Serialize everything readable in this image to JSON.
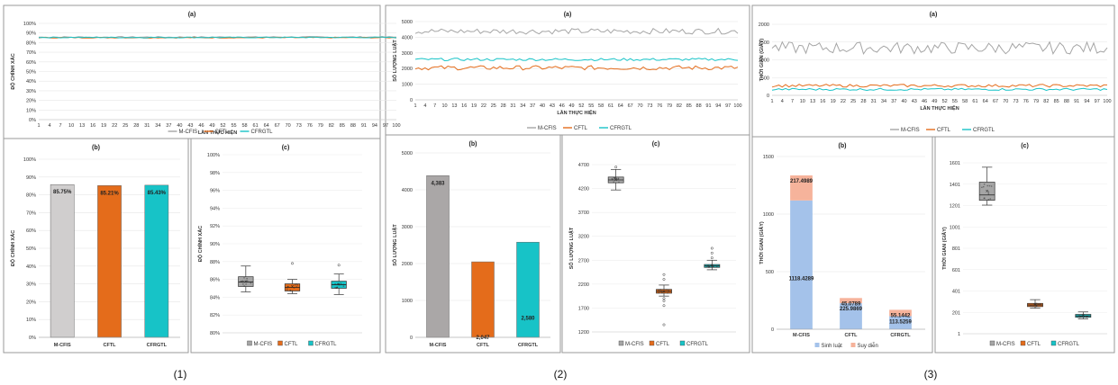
{
  "figure_labels": [
    "(1)",
    "(2)",
    "(3)"
  ],
  "colors": {
    "mcfis": "#a5a5a5",
    "cftl": "#e46c1b",
    "cfrgtl": "#17c3c7",
    "train": "#a4c2ea",
    "infer": "#f6b39b"
  },
  "chart_data": [
    {
      "id": "1a",
      "type": "line",
      "title": "(a)",
      "xlabel": "LẦN THỰC HIỆN",
      "ylabel": "ĐỘ CHÍNH XÁC",
      "ylim": [
        0,
        100
      ],
      "yticks": [
        "0%",
        "10%",
        "20%",
        "30%",
        "40%",
        "50%",
        "60%",
        "70%",
        "80%",
        "90%",
        "100%"
      ],
      "xticks": [
        "1",
        "4",
        "7",
        "10",
        "13",
        "16",
        "19",
        "22",
        "25",
        "28",
        "31",
        "34",
        "37",
        "40",
        "43",
        "46",
        "49",
        "52",
        "55",
        "58",
        "61",
        "64",
        "67",
        "70",
        "73",
        "76",
        "79",
        "82",
        "85",
        "88",
        "91",
        "94",
        "97",
        "100"
      ],
      "series": [
        {
          "name": "M-CFIS",
          "color": "#a5a5a5",
          "mean": 85.75,
          "amp": 0.6
        },
        {
          "name": "CFTL",
          "color": "#e46c1b",
          "mean": 85.21,
          "amp": 0.5
        },
        {
          "name": "CFRGTL",
          "color": "#17c3c7",
          "mean": 85.43,
          "amp": 0.5
        }
      ]
    },
    {
      "id": "1b",
      "type": "bar",
      "title": "(b)",
      "ylabel": "ĐỘ CHÍNH XÁC",
      "ylim": [
        0,
        100
      ],
      "yticks": [
        "0%",
        "10%",
        "20%",
        "30%",
        "40%",
        "50%",
        "60%",
        "70%",
        "80%",
        "90%",
        "100%"
      ],
      "categories": [
        "M-CFIS",
        "CFTL",
        "CFRGTL"
      ],
      "values": [
        85.75,
        85.21,
        85.43
      ],
      "labels": [
        "85.75%",
        "85.21%",
        "85.43%"
      ],
      "colors": [
        "#d0cece",
        "#e46c1b",
        "#17c3c7"
      ]
    },
    {
      "id": "1c",
      "type": "box",
      "title": "(c)",
      "ylabel": "ĐỘ CHÍNH XÁC",
      "ylim": [
        80,
        100
      ],
      "yticks": [
        "80%",
        "82%",
        "84%",
        "86%",
        "88%",
        "90%",
        "92%",
        "94%",
        "96%",
        "98%",
        "100%"
      ],
      "categories": [
        "M-CFIS",
        "CFTL",
        "CFRGTL"
      ],
      "legend": [
        "M-CFIS",
        "CFTL",
        "CFRGTL"
      ],
      "boxes": [
        {
          "min": 84.6,
          "q1": 85.2,
          "median": 85.7,
          "q3": 86.3,
          "max": 87.5,
          "mean": 85.75,
          "color": "#a5a5a5",
          "outliers": []
        },
        {
          "min": 84.4,
          "q1": 84.7,
          "median": 85.1,
          "q3": 85.5,
          "max": 86.0,
          "mean": 85.21,
          "color": "#e46c1b",
          "outliers": [
            87.8
          ]
        },
        {
          "min": 84.3,
          "q1": 85.0,
          "median": 85.4,
          "q3": 85.8,
          "max": 86.6,
          "mean": 85.43,
          "color": "#17c3c7",
          "outliers": [
            87.6
          ]
        }
      ]
    },
    {
      "id": "2a",
      "type": "line",
      "title": "(a)",
      "xlabel": "LẦN THỰC HIỆN",
      "ylabel": "SỐ LƯỢNG LUẬT",
      "ylim": [
        0,
        5000
      ],
      "yticks": [
        "0",
        "1000",
        "2000",
        "3000",
        "4000",
        "5000"
      ],
      "xticks": [
        "1",
        "4",
        "7",
        "10",
        "13",
        "16",
        "19",
        "22",
        "25",
        "28",
        "31",
        "34",
        "37",
        "40",
        "43",
        "46",
        "49",
        "52",
        "55",
        "58",
        "61",
        "64",
        "67",
        "70",
        "73",
        "76",
        "79",
        "82",
        "85",
        "88",
        "91",
        "94",
        "97",
        "100"
      ],
      "series": [
        {
          "name": "M-CFIS",
          "color": "#a5a5a5",
          "mean": 4383,
          "amp": 180
        },
        {
          "name": "CFTL",
          "color": "#e46c1b",
          "mean": 2047,
          "amp": 140
        },
        {
          "name": "CFRGTL",
          "color": "#17c3c7",
          "mean": 2580,
          "amp": 80
        }
      ]
    },
    {
      "id": "2b",
      "type": "bar",
      "title": "(b)",
      "ylabel": "SỐ LƯỢNG LUẬT",
      "ylim": [
        0,
        5000
      ],
      "yticks": [
        "0",
        "1000",
        "2000",
        "3000",
        "4000",
        "5000"
      ],
      "categories": [
        "M-CFIS",
        "CFTL",
        "CFRGTL"
      ],
      "values": [
        4383,
        2047,
        2580
      ],
      "labels": [
        "4,383",
        "2,047",
        "2,580"
      ],
      "colors": [
        "#aaa7a7",
        "#e46c1b",
        "#17c3c7"
      ]
    },
    {
      "id": "2c",
      "type": "box",
      "title": "(c)",
      "ylabel": "SỐ LƯỢNG LUẬT",
      "ylim": [
        1200,
        4700
      ],
      "yticks": [
        "1200",
        "1700",
        "2200",
        "2700",
        "3200",
        "3700",
        "4200",
        "4700"
      ],
      "categories": [
        "M-CFIS",
        "CFTL",
        "CFRGTL"
      ],
      "legend": [
        "M-CFIS",
        "CFTL",
        "CFRGTL"
      ],
      "boxes": [
        {
          "min": 4170,
          "q1": 4320,
          "median": 4380,
          "q3": 4440,
          "max": 4600,
          "mean": 4383,
          "color": "#a5a5a5",
          "outliers": [
            4650
          ]
        },
        {
          "min": 1950,
          "q1": 2010,
          "median": 2050,
          "q3": 2090,
          "max": 2180,
          "mean": 2047,
          "color": "#e46c1b",
          "outliers": [
            1350,
            1750,
            1850,
            1900,
            2300,
            2400
          ]
        },
        {
          "min": 2500,
          "q1": 2550,
          "median": 2580,
          "q3": 2610,
          "max": 2700,
          "mean": 2580,
          "color": "#17c3c7",
          "outliers": [
            2750,
            2850,
            2950
          ]
        }
      ]
    },
    {
      "id": "3a",
      "type": "line",
      "title": "(a)",
      "xlabel": "LẦN THỰC HIỆN",
      "ylabel": "THỜI GIAN (GIÂY)",
      "ylim": [
        0,
        2000
      ],
      "yticks": [
        "0",
        "500",
        "1000",
        "1500",
        "2000"
      ],
      "xticks": [
        "1",
        "4",
        "7",
        "10",
        "13",
        "16",
        "19",
        "22",
        "25",
        "28",
        "31",
        "34",
        "37",
        "40",
        "43",
        "46",
        "49",
        "52",
        "55",
        "58",
        "61",
        "64",
        "67",
        "70",
        "73",
        "76",
        "79",
        "82",
        "85",
        "88",
        "91",
        "94",
        "97",
        "100"
      ],
      "series": [
        {
          "name": "M-CFIS",
          "color": "#a5a5a5",
          "mean": 1335,
          "amp": 170
        },
        {
          "name": "CFTL",
          "color": "#e46c1b",
          "mean": 272,
          "amp": 40
        },
        {
          "name": "CFRGTL",
          "color": "#17c3c7",
          "mean": 169,
          "amp": 30
        }
      ]
    },
    {
      "id": "3b",
      "type": "stacked-bar",
      "title": "(b)",
      "ylabel": "THỜI GIAN (GIÂY)",
      "ylim": [
        0,
        1500
      ],
      "yticks": [
        "0",
        "500",
        "1000",
        "1500"
      ],
      "categories": [
        "M-CFIS",
        "CFTL",
        "CFRGTL"
      ],
      "series": [
        {
          "name": "Sinh luật",
          "values": [
            1118.4289,
            225.9869,
            113.5259
          ],
          "labels": [
            "1118.4289",
            "225.9869",
            "113.5259"
          ]
        },
        {
          "name": "Suy diễn",
          "values": [
            217.4989,
            45.0789,
            55.1442
          ],
          "labels": [
            "217.4989",
            "45.0789",
            "55.1442"
          ]
        }
      ]
    },
    {
      "id": "3c",
      "type": "box",
      "title": "(c)",
      "ylabel": "THỜI GIAN (GIÂY)",
      "ylim": [
        1,
        1601
      ],
      "yticks": [
        "1",
        "201",
        "401",
        "601",
        "801",
        "1001",
        "1201",
        "1401",
        "1601"
      ],
      "categories": [
        "M-CFIS",
        "CFTL",
        "CFRGTL"
      ],
      "legend": [
        "M-CFIS",
        "CFTL",
        "CFRGTL"
      ],
      "boxes": [
        {
          "min": 1205,
          "q1": 1250,
          "median": 1300,
          "q3": 1420,
          "max": 1560,
          "mean": 1335,
          "color": "#a5a5a5",
          "outliers": []
        },
        {
          "min": 240,
          "q1": 255,
          "median": 270,
          "q3": 285,
          "max": 320,
          "mean": 272,
          "color": "#e46c1b",
          "outliers": []
        },
        {
          "min": 140,
          "q1": 155,
          "median": 168,
          "q3": 182,
          "max": 205,
          "mean": 169,
          "color": "#17c3c7",
          "outliers": []
        }
      ]
    }
  ]
}
